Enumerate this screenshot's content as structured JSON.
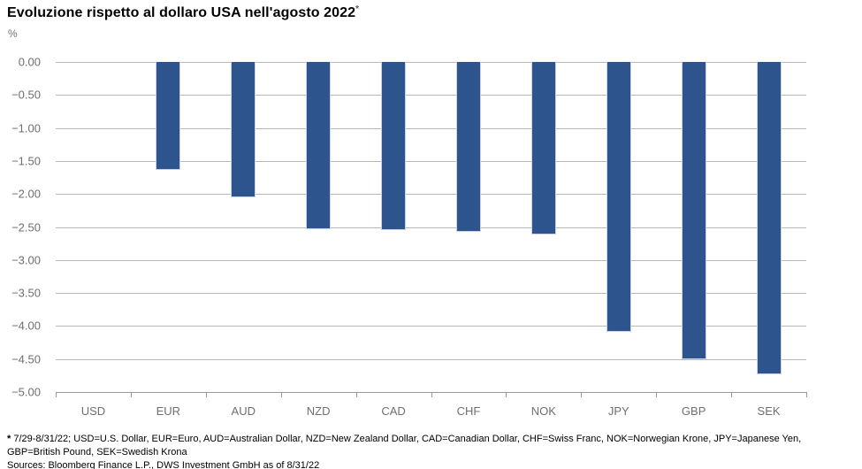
{
  "title": "Evoluzione rispetto al dollaro USA nell'agosto 2022",
  "title_note_marker": "*",
  "unit_label": "%",
  "footnote": {
    "marker": "*",
    "line1": "7/29-8/31/22; USD=U.S. Dollar, EUR=Euro, AUD=Australian Dollar, NZD=New Zealand Dollar, CAD=Canadian Dollar, CHF=Swiss Franc, NOK=Norwegian Krone, JPY=Japanese Yen, GBP=British Pound, SEK=Swedish Krona",
    "line2": "Sources: Bloomberg Finance L.P., DWS Investment GmbH as of 8/31/22"
  },
  "colors": {
    "bar": "#2e548e",
    "bar_border": "#c9d2e8",
    "gridline": "#b9b9b9",
    "axis": "#999999",
    "tick_label": "#6f6f6f"
  },
  "chart_data": {
    "type": "bar",
    "title": "Evoluzione rispetto al dollaro USA nell'agosto 2022*",
    "xlabel": "",
    "ylabel": "%",
    "categories": [
      "USD",
      "EUR",
      "AUD",
      "NZD",
      "CAD",
      "CHF",
      "NOK",
      "JPY",
      "GBP",
      "SEK"
    ],
    "values": [
      0.0,
      -1.63,
      -2.05,
      -2.53,
      -2.55,
      -2.57,
      -2.61,
      -4.09,
      -4.51,
      -4.73
    ],
    "ylim": [
      -5.0,
      0.0
    ],
    "ytick_step": 0.5,
    "yticks": [
      "0.00",
      "−0.50",
      "−1.00",
      "−1.50",
      "−2.00",
      "−2.50",
      "−3.00",
      "−3.50",
      "−4.00",
      "−4.50",
      "−5.00"
    ],
    "grid": true,
    "legend": false,
    "bar_color": "#2e548e"
  }
}
